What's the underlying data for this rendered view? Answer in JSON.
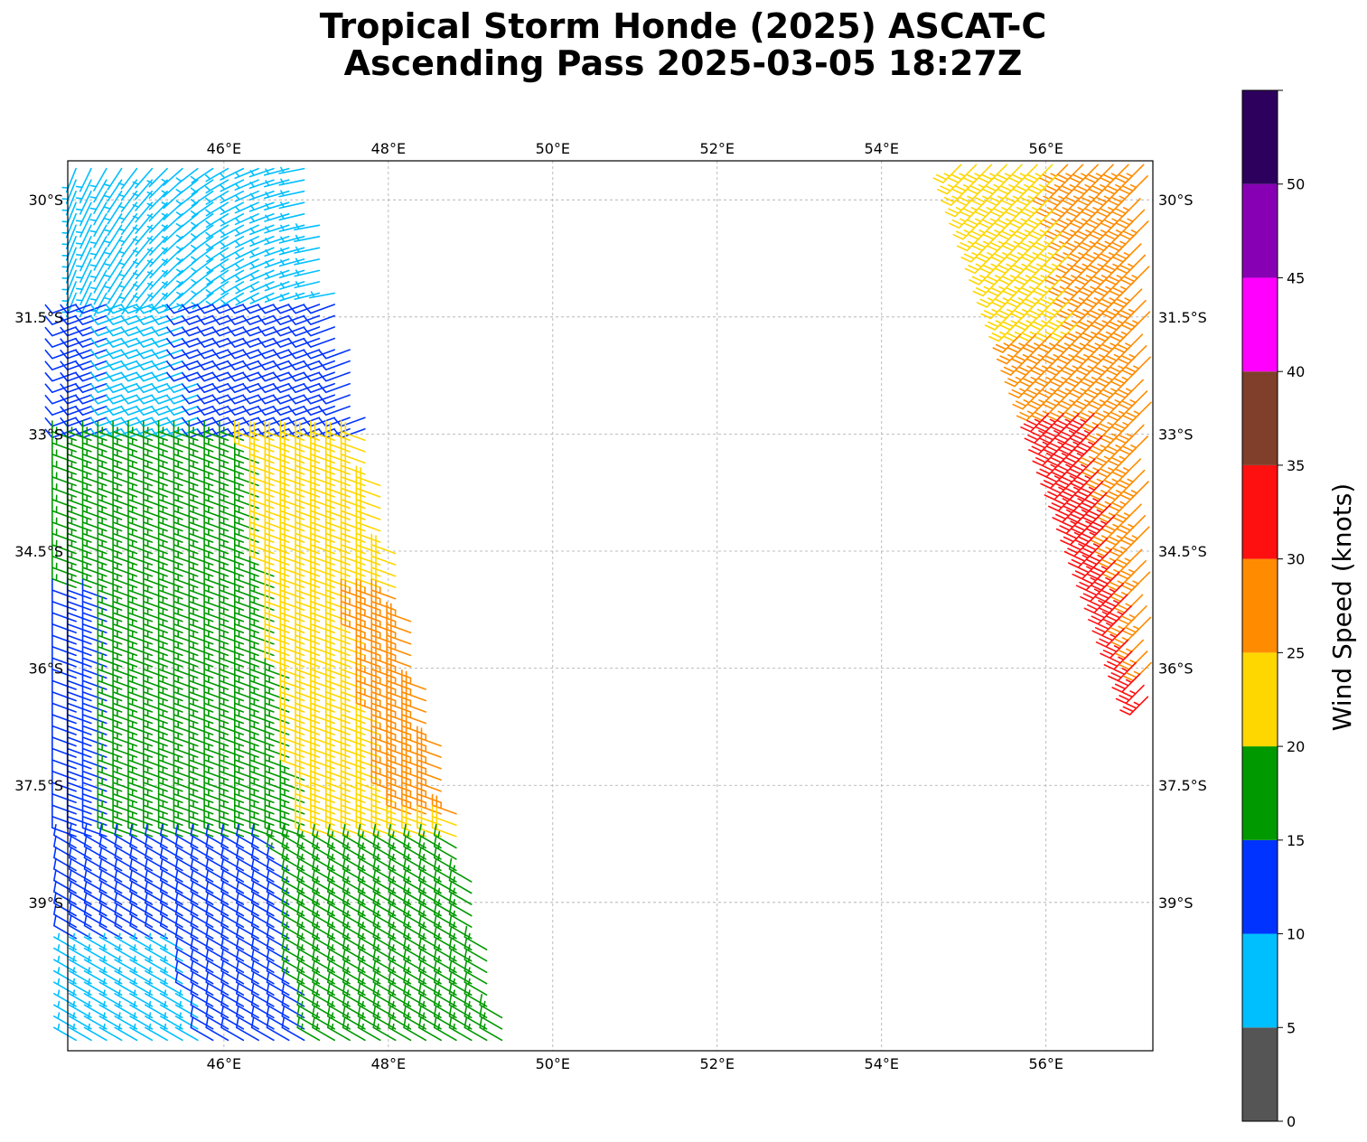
{
  "chart_data": {
    "type": "barb-map",
    "title": "Tropical Storm Honde (2025) ASCAT-C",
    "subtitle": "Ascending Pass 2025-03-05 18:27Z",
    "lon_range": [
      44.1,
      57.3
    ],
    "lat_range": [
      -40.9,
      -29.5
    ],
    "lon_ticks": [
      {
        "lon": 46,
        "label": "46°E"
      },
      {
        "lon": 48,
        "label": "48°E"
      },
      {
        "lon": 50,
        "label": "50°E"
      },
      {
        "lon": 52,
        "label": "52°E"
      },
      {
        "lon": 54,
        "label": "54°E"
      },
      {
        "lon": 56,
        "label": "56°E"
      }
    ],
    "lat_ticks": [
      {
        "lat": -30,
        "label": "30°S"
      },
      {
        "lat": -31.5,
        "label": "31.5°S"
      },
      {
        "lat": -33,
        "label": "33°S"
      },
      {
        "lat": -34.5,
        "label": "34.5°S"
      },
      {
        "lat": -36,
        "label": "36°S"
      },
      {
        "lat": -37.5,
        "label": "37.5°S"
      },
      {
        "lat": -39,
        "label": "39°S"
      }
    ],
    "grid": true,
    "colorbar": {
      "label": "Wind Speed (knots)",
      "bounds": [
        0,
        5,
        10,
        15,
        20,
        25,
        30,
        35,
        40,
        45,
        50,
        55
      ],
      "tick_labels": [
        "0",
        "5",
        "10",
        "15",
        "20",
        "25",
        "30",
        "35",
        "40",
        "45",
        "50"
      ],
      "colors": [
        "#555555",
        "#00bfff",
        "#0033ff",
        "#009900",
        "#ffd700",
        "#ff8c00",
        "#ff1010",
        "#7f3f2a",
        "#ff00ff",
        "#8800b3",
        "#2d005e"
      ]
    },
    "swaths": [
      {
        "name": "west",
        "note": "left ASCAT swath; speed regions (knots)",
        "regions": [
          {
            "lat_top": -29.5,
            "lat_bot": -31.2,
            "speed": 8,
            "dir": 200
          },
          {
            "lat_top": -31.2,
            "lat_bot": -33.0,
            "speed": 12,
            "dir": 260
          },
          {
            "lat_top": -33.0,
            "lat_bot": -38.2,
            "speed": 17,
            "dir": 290
          },
          {
            "lat_top": -34.0,
            "lat_bot": -38.4,
            "speed": 22,
            "dir": 290
          },
          {
            "lat_top": -35.0,
            "lat_bot": -37.8,
            "speed": 27,
            "dir": 290
          },
          {
            "lat_top": -38.2,
            "lat_bot": -40.9,
            "speed": 12,
            "dir": 300
          },
          {
            "lat_top": -39.5,
            "lat_bot": -40.9,
            "speed": 7,
            "dir": 330
          }
        ]
      },
      {
        "name": "east",
        "note": "right ASCAT swath",
        "regions": [
          {
            "lat_top": -29.5,
            "lat_bot": -31.6,
            "speed": 23,
            "dir": 225
          },
          {
            "lat_top": -29.5,
            "lat_bot": -36.5,
            "speed": 27,
            "dir": 225
          },
          {
            "lat_top": -32.7,
            "lat_bot": -36.4,
            "speed": 33,
            "dir": 225
          }
        ]
      }
    ]
  }
}
